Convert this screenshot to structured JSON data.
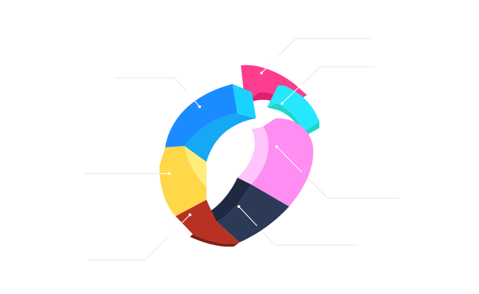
{
  "chart_data": {
    "type": "donut",
    "style": "3d-isometric-exploded",
    "title": "",
    "labels_shown": false,
    "segments": [
      {
        "color": "#ff3d8f",
        "side": "#e0206f",
        "inner": "#c81a5e",
        "exploded": true
      },
      {
        "color": "#25e8ff",
        "side": "#20d6c8",
        "inner": "#1cc4a8",
        "exploded": true
      },
      {
        "color": "#ff8df2",
        "side": "#ffc4fb",
        "inner": "#f7a8f4",
        "exploded": false
      },
      {
        "color": "#2c3a57",
        "side": "#1e2a42",
        "inner": "#24324f",
        "exploded": false
      },
      {
        "color": "#b83224",
        "side": "#7f1f1a",
        "inner": "#9b2a22",
        "exploded": false
      },
      {
        "color": "#ffd84a",
        "side": "#ffec7a",
        "inner": "#fff07f",
        "exploded": false
      },
      {
        "color": "#1a8cff",
        "side": "#14a8f5",
        "inner": "#0fbaff",
        "exploded": false
      }
    ]
  }
}
